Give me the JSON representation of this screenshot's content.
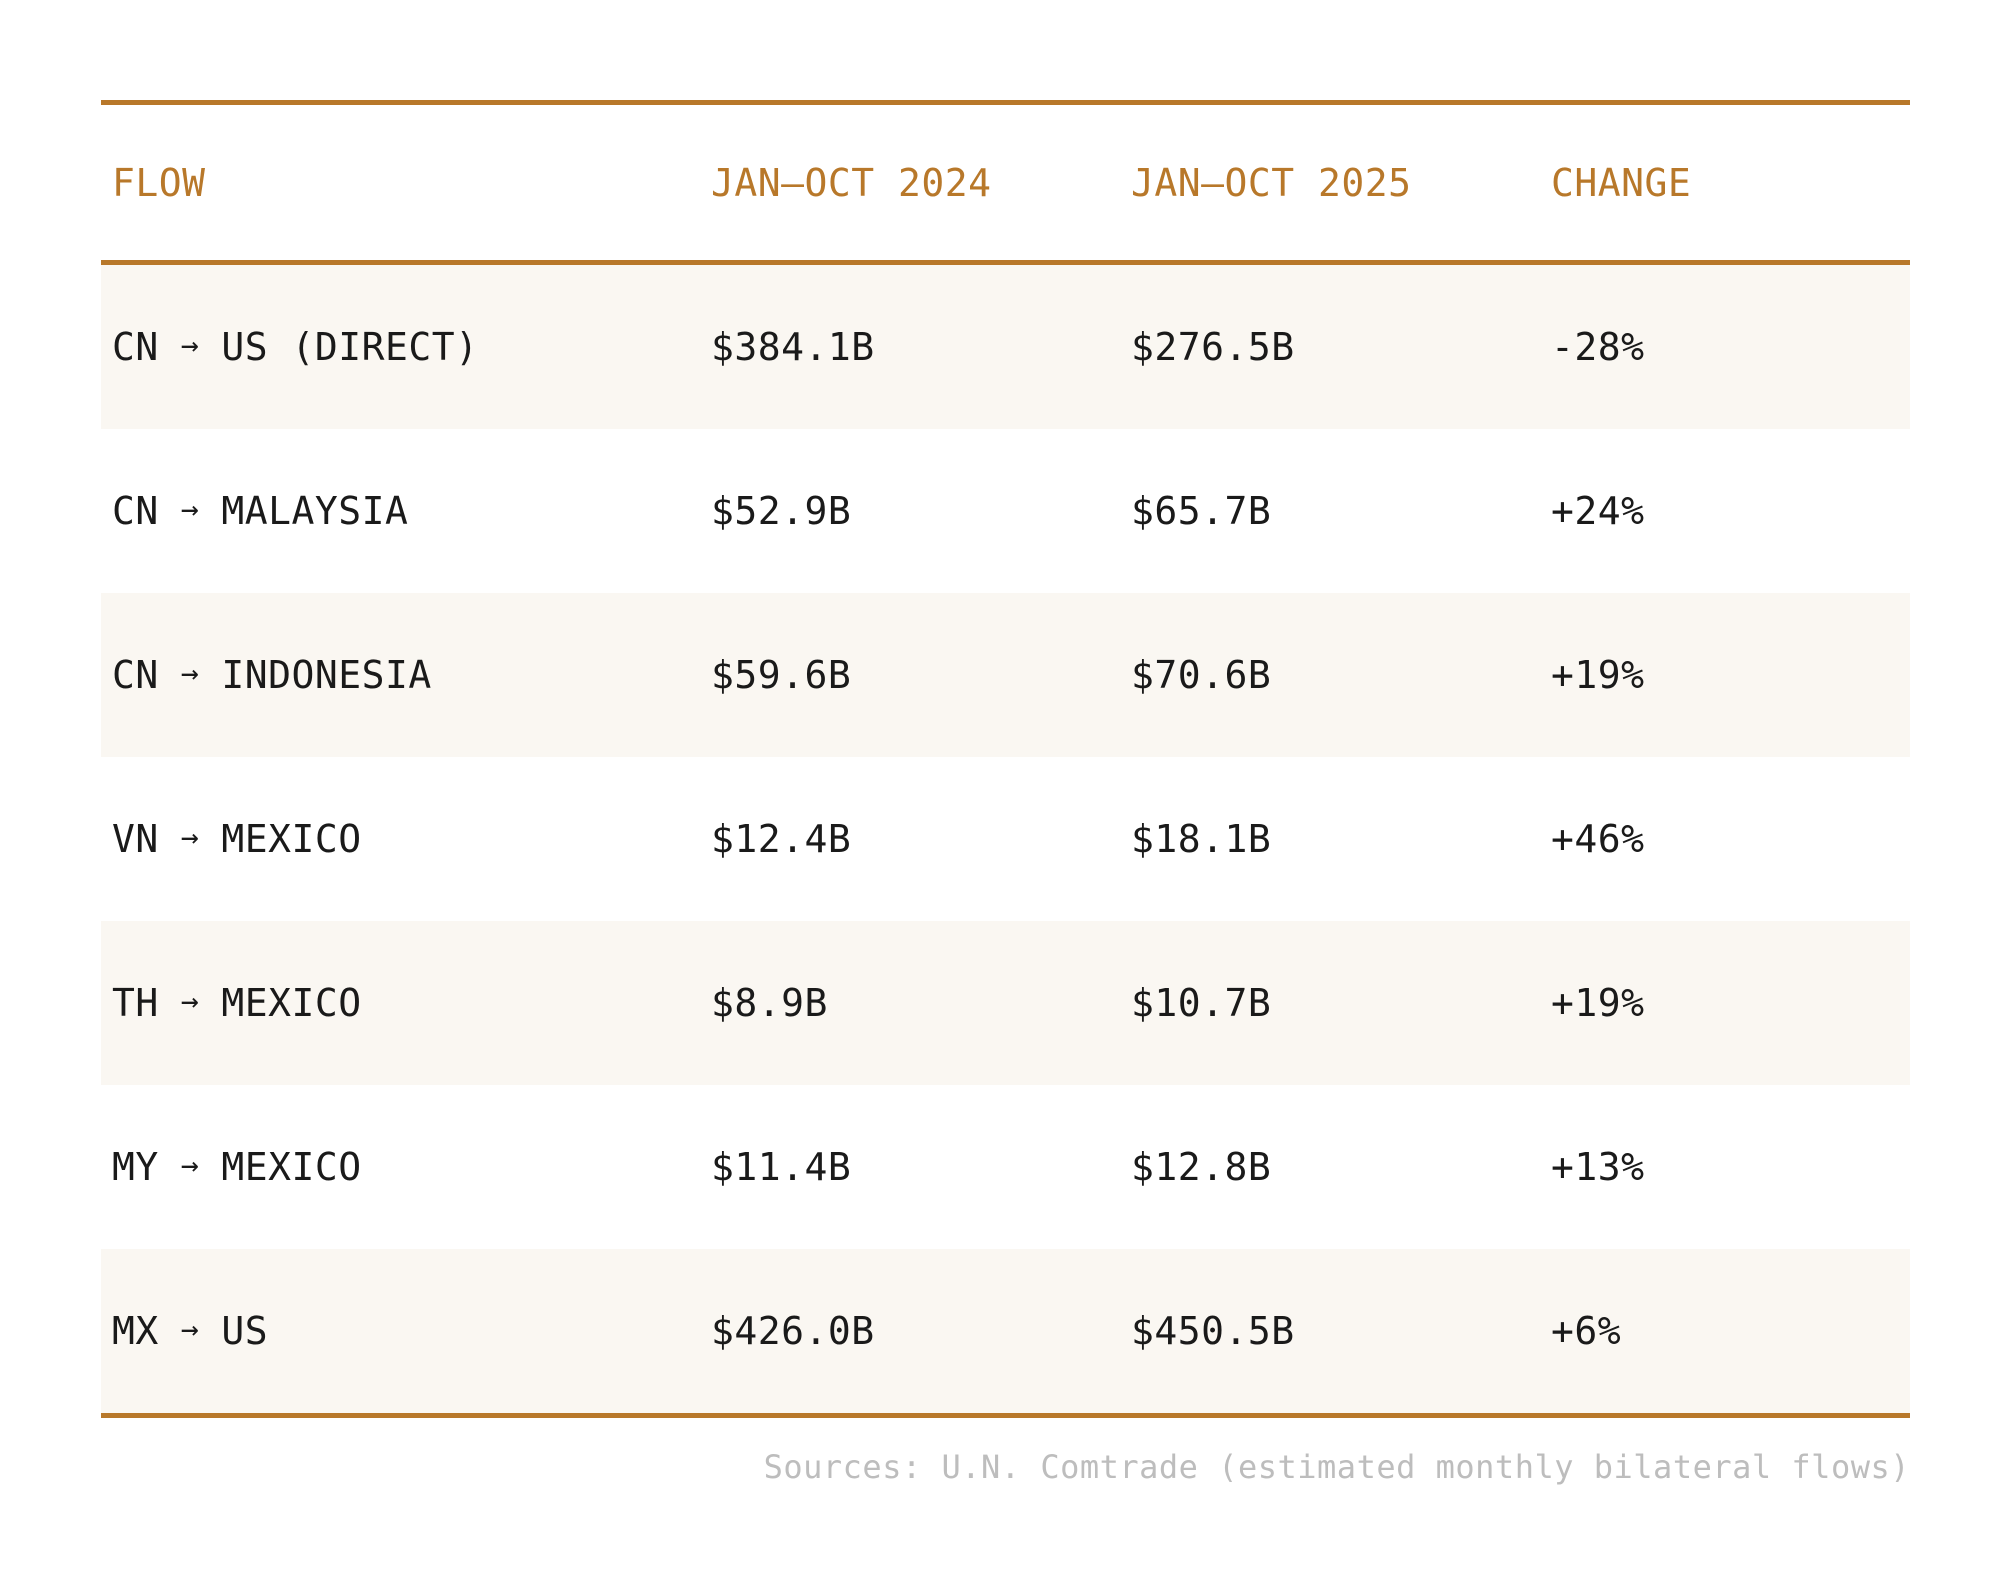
{
  "chart_data": {
    "type": "table",
    "columns": [
      "FLOW",
      "JAN–OCT 2024",
      "JAN–OCT 2025",
      "CHANGE"
    ],
    "rows": [
      {
        "origin": "CN",
        "arrow": "→",
        "destination": "US (DIRECT)",
        "y2024": "$384.1B",
        "y2025": "$276.5B",
        "change": "-28%"
      },
      {
        "origin": "CN",
        "arrow": "→",
        "destination": "MALAYSIA",
        "y2024": "$52.9B",
        "y2025": "$65.7B",
        "change": "+24%"
      },
      {
        "origin": "CN",
        "arrow": "→",
        "destination": "INDONESIA",
        "y2024": "$59.6B",
        "y2025": "$70.6B",
        "change": "+19%"
      },
      {
        "origin": "VN",
        "arrow": "→",
        "destination": "MEXICO",
        "y2024": "$12.4B",
        "y2025": "$18.1B",
        "change": "+46%"
      },
      {
        "origin": "TH",
        "arrow": "→",
        "destination": "MEXICO",
        "y2024": "$8.9B",
        "y2025": "$10.7B",
        "change": "+19%"
      },
      {
        "origin": "MY",
        "arrow": "→",
        "destination": "MEXICO",
        "y2024": "$11.4B",
        "y2025": "$12.8B",
        "change": "+13%"
      },
      {
        "origin": "MX",
        "arrow": "→",
        "destination": "US",
        "y2024": "$426.0B",
        "y2025": "$450.5B",
        "change": "+6%"
      }
    ],
    "source": "Sources: U.N. Comtrade (estimated monthly bilateral flows)"
  },
  "colors": {
    "accent": "#b8782a",
    "row_shade": "#faf7f2",
    "text": "#1a1a1a",
    "source_text": "#bdbdbd"
  }
}
